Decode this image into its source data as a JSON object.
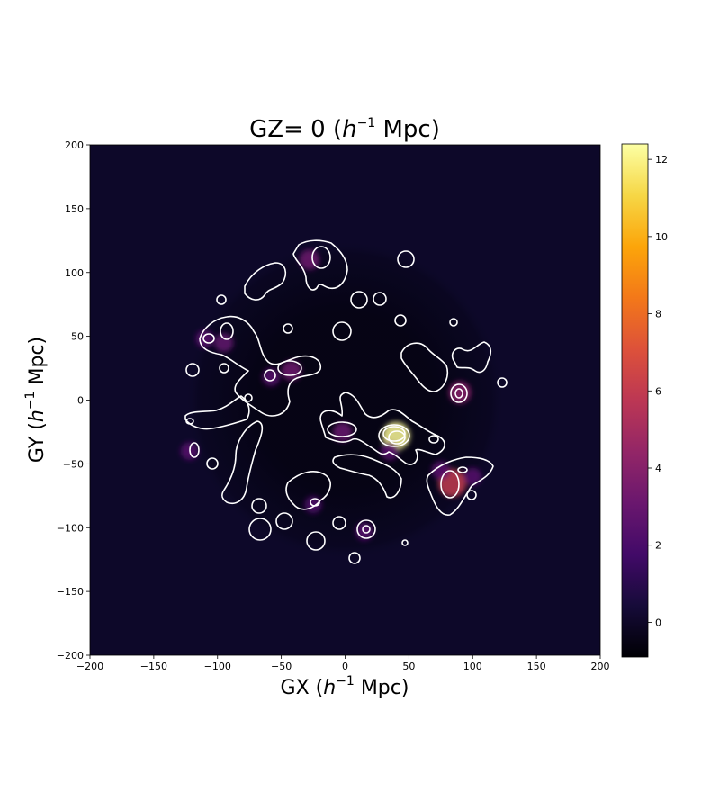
{
  "chart_data": {
    "type": "heatmap",
    "title": {
      "prefix": "GZ= 0 (",
      "italic": "h",
      "sup": "−1",
      "suffix": " Mpc)"
    },
    "xlabel": {
      "prefix": "GX (",
      "italic": "h",
      "sup": "−1",
      "suffix": " Mpc)"
    },
    "ylabel": {
      "prefix": "GY (",
      "italic": "h",
      "sup": "−1",
      "suffix": " Mpc)"
    },
    "xlim": [
      -200,
      200
    ],
    "ylim": [
      -200,
      200
    ],
    "x_ticks": [
      "−200",
      "−150",
      "−100",
      "−50",
      "0",
      "50",
      "100",
      "150",
      "200"
    ],
    "y_ticks": [
      "−200",
      "−150",
      "−100",
      "−50",
      "0",
      "50",
      "100",
      "150",
      "200"
    ],
    "x_tick_values": [
      -200,
      -150,
      -100,
      -50,
      0,
      50,
      100,
      150,
      200
    ],
    "y_tick_values": [
      -200,
      -150,
      -100,
      -50,
      0,
      50,
      100,
      150,
      200
    ],
    "survey_radius": 125,
    "background_value": 0.6,
    "colormap": "inferno",
    "colorbar": {
      "range": [
        -0.9,
        12.4
      ],
      "ticks": [
        "0",
        "2",
        "4",
        "6",
        "8",
        "10",
        "12"
      ],
      "tick_values": [
        0,
        2,
        4,
        6,
        8,
        10,
        12
      ]
    },
    "density_peaks": [
      {
        "x": 40,
        "y": -28,
        "value": 12.2
      },
      {
        "x": 84,
        "y": -65,
        "value": 6.0
      },
      {
        "x": 90,
        "y": 6,
        "value": 4.0
      },
      {
        "x": -28,
        "y": 110,
        "value": 3.2
      },
      {
        "x": -42,
        "y": 23,
        "value": 3.2
      },
      {
        "x": -2,
        "y": -25,
        "value": 3.0
      },
      {
        "x": -95,
        "y": 45,
        "value": 2.8
      },
      {
        "x": -110,
        "y": 48,
        "value": 2.5
      },
      {
        "x": -58,
        "y": 18,
        "value": 2.4
      },
      {
        "x": 75,
        "y": -55,
        "value": 2.6
      },
      {
        "x": 100,
        "y": -60,
        "value": 2.4
      },
      {
        "x": 15,
        "y": -103,
        "value": 2.4
      },
      {
        "x": -25,
        "y": -82,
        "value": 2.2
      },
      {
        "x": -122,
        "y": -40,
        "value": 2.4
      },
      {
        "x": 35,
        "y": -40,
        "value": 2.6
      }
    ],
    "colors": {
      "background": "#0d0829",
      "contour": "#ffffff",
      "peak": "#fcffa4"
    }
  }
}
